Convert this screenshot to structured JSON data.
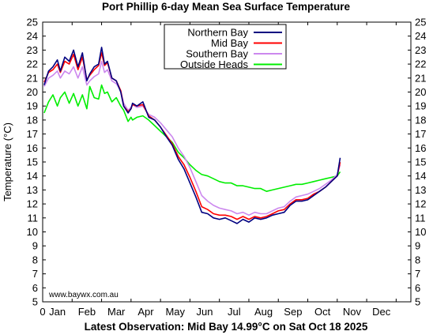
{
  "chart_data": {
    "type": "line",
    "title": "Port Phillip 6-day Mean Sea Surface Temperature",
    "ylabel": "Temperature (°C)",
    "footer": "Latest Observation: Mid Bay 14.99°C on Sat Oct 18 2025",
    "watermark": "www.baywx.com.au",
    "x_tick_labels": [
      "0",
      "Jan",
      "Feb",
      "Mar",
      "Apr",
      "May",
      "Jun",
      "Jul",
      "Aug",
      "Sep",
      "Oct",
      "Nov",
      "Dec"
    ],
    "ylim": [
      5,
      25
    ],
    "yticks": [
      5,
      6,
      7,
      8,
      9,
      10,
      11,
      12,
      13,
      14,
      15,
      16,
      17,
      18,
      19,
      20,
      21,
      22,
      23,
      24,
      25
    ],
    "x_unit": "month (0 = start of Jan, 12 = end of Dec)",
    "xlim": [
      0,
      12.5
    ],
    "legend_placement": "top-center",
    "grid": false,
    "series": [
      {
        "name": "Northern Bay",
        "color": "#000080",
        "x": [
          0.05,
          0.2,
          0.35,
          0.5,
          0.6,
          0.75,
          0.9,
          1.05,
          1.2,
          1.35,
          1.5,
          1.6,
          1.75,
          1.9,
          2.0,
          2.1,
          2.2,
          2.35,
          2.5,
          2.65,
          2.75,
          2.9,
          3.0,
          3.05,
          3.2,
          3.4,
          3.6,
          3.8,
          4.0,
          4.2,
          4.4,
          4.6,
          4.8,
          5.0,
          5.2,
          5.4,
          5.6,
          5.8,
          6.0,
          6.2,
          6.4,
          6.6,
          6.8,
          7.0,
          7.2,
          7.4,
          7.6,
          7.8,
          8.0,
          8.2,
          8.4,
          8.6,
          8.8,
          9.0,
          9.2,
          9.4,
          9.6,
          9.8,
          10.0,
          10.1
        ],
        "y": [
          20.5,
          21.5,
          21.8,
          22.3,
          21.5,
          22.5,
          22.2,
          23.0,
          21.8,
          22.8,
          20.8,
          21.3,
          21.8,
          22.0,
          23.2,
          22.0,
          22.2,
          21.0,
          20.8,
          20.0,
          19.0,
          18.5,
          18.8,
          19.2,
          19.0,
          19.3,
          18.2,
          18.0,
          17.5,
          16.8,
          16.2,
          15.2,
          14.5,
          13.5,
          12.5,
          11.4,
          11.3,
          11.0,
          10.9,
          11.0,
          10.8,
          10.6,
          10.9,
          10.7,
          11.0,
          10.9,
          11.0,
          11.2,
          11.3,
          11.4,
          11.9,
          12.2,
          12.2,
          12.3,
          12.6,
          12.9,
          13.2,
          13.6,
          14.0,
          15.3
        ]
      },
      {
        "name": "Mid Bay",
        "color": "#ff0000",
        "x": [
          0.05,
          0.2,
          0.35,
          0.5,
          0.6,
          0.75,
          0.9,
          1.05,
          1.2,
          1.35,
          1.5,
          1.6,
          1.75,
          1.9,
          2.0,
          2.1,
          2.2,
          2.35,
          2.5,
          2.65,
          2.75,
          2.9,
          3.0,
          3.05,
          3.2,
          3.4,
          3.6,
          3.8,
          4.0,
          4.2,
          4.4,
          4.6,
          4.8,
          5.0,
          5.2,
          5.4,
          5.6,
          5.8,
          6.0,
          6.2,
          6.4,
          6.6,
          6.8,
          7.0,
          7.2,
          7.4,
          7.6,
          7.8,
          8.0,
          8.2,
          8.4,
          8.6,
          8.8,
          9.0,
          9.2,
          9.4,
          9.6,
          9.8,
          10.0,
          10.1
        ],
        "y": [
          20.7,
          21.4,
          21.6,
          22.0,
          21.4,
          22.2,
          22.0,
          22.7,
          21.6,
          22.5,
          20.9,
          21.2,
          21.6,
          21.9,
          22.8,
          21.9,
          22.1,
          21.0,
          20.8,
          20.1,
          19.0,
          18.6,
          18.8,
          19.1,
          19.0,
          19.1,
          18.3,
          18.0,
          17.5,
          16.9,
          16.3,
          15.4,
          14.8,
          13.9,
          12.9,
          11.8,
          11.6,
          11.3,
          11.2,
          11.2,
          11.1,
          10.9,
          11.1,
          10.9,
          11.1,
          11.0,
          11.1,
          11.3,
          11.5,
          11.6,
          12.0,
          12.3,
          12.3,
          12.4,
          12.7,
          12.9,
          13.2,
          13.6,
          14.0,
          14.99
        ]
      },
      {
        "name": "Southern Bay",
        "color": "#cc88ee",
        "x": [
          0.05,
          0.2,
          0.35,
          0.5,
          0.6,
          0.75,
          0.9,
          1.05,
          1.2,
          1.35,
          1.5,
          1.6,
          1.75,
          1.9,
          2.0,
          2.1,
          2.2,
          2.35,
          2.5,
          2.65,
          2.75,
          2.9,
          3.0,
          3.05,
          3.2,
          3.4,
          3.6,
          3.8,
          4.0,
          4.2,
          4.4,
          4.6,
          4.8,
          5.0,
          5.2,
          5.4,
          5.6,
          5.8,
          6.0,
          6.2,
          6.4,
          6.6,
          6.8,
          7.0,
          7.2,
          7.4,
          7.6,
          7.8,
          8.0,
          8.2,
          8.4,
          8.6,
          8.8,
          9.0,
          9.2,
          9.4,
          9.6,
          9.8,
          10.0,
          10.1
        ],
        "y": [
          20.4,
          21.0,
          21.2,
          21.5,
          21.0,
          21.5,
          21.3,
          21.8,
          21.0,
          21.8,
          20.5,
          20.8,
          21.1,
          21.3,
          22.2,
          21.4,
          21.6,
          20.8,
          20.6,
          20.1,
          19.2,
          18.7,
          18.9,
          19.1,
          18.9,
          19.0,
          18.4,
          18.2,
          17.8,
          17.3,
          16.8,
          16.0,
          15.4,
          14.6,
          13.6,
          12.6,
          12.2,
          11.9,
          11.7,
          11.6,
          11.5,
          11.3,
          11.4,
          11.2,
          11.4,
          11.3,
          11.3,
          11.5,
          11.7,
          11.8,
          12.2,
          12.5,
          12.6,
          12.7,
          12.9,
          13.1,
          13.4,
          13.7,
          14.1,
          14.8
        ]
      },
      {
        "name": "Outside Heads",
        "color": "#00ee00",
        "x": [
          0.05,
          0.2,
          0.35,
          0.5,
          0.6,
          0.75,
          0.9,
          1.05,
          1.2,
          1.35,
          1.5,
          1.6,
          1.75,
          1.9,
          2.0,
          2.1,
          2.2,
          2.35,
          2.5,
          2.65,
          2.75,
          2.9,
          3.0,
          3.05,
          3.2,
          3.4,
          3.6,
          3.8,
          4.0,
          4.2,
          4.4,
          4.6,
          4.8,
          5.0,
          5.2,
          5.4,
          5.6,
          5.8,
          6.0,
          6.2,
          6.4,
          6.6,
          6.8,
          7.0,
          7.2,
          7.4,
          7.6,
          7.8,
          8.0,
          8.2,
          8.4,
          8.6,
          8.8,
          9.0,
          9.2,
          9.4,
          9.6,
          9.8,
          10.0,
          10.1
        ],
        "y": [
          18.5,
          19.3,
          19.8,
          19.0,
          19.6,
          20.0,
          19.2,
          19.9,
          19.0,
          19.8,
          18.8,
          20.4,
          19.6,
          19.5,
          20.5,
          19.9,
          20.0,
          19.3,
          19.6,
          19.0,
          18.7,
          17.9,
          18.2,
          18.0,
          18.2,
          18.3,
          18.0,
          17.6,
          17.2,
          16.8,
          16.4,
          15.7,
          15.3,
          14.8,
          14.4,
          14.1,
          14.0,
          13.8,
          13.6,
          13.5,
          13.5,
          13.3,
          13.3,
          13.2,
          13.1,
          13.1,
          12.9,
          13.0,
          13.1,
          13.2,
          13.3,
          13.4,
          13.4,
          13.5,
          13.6,
          13.7,
          13.8,
          13.9,
          14.0,
          14.3
        ]
      }
    ]
  }
}
